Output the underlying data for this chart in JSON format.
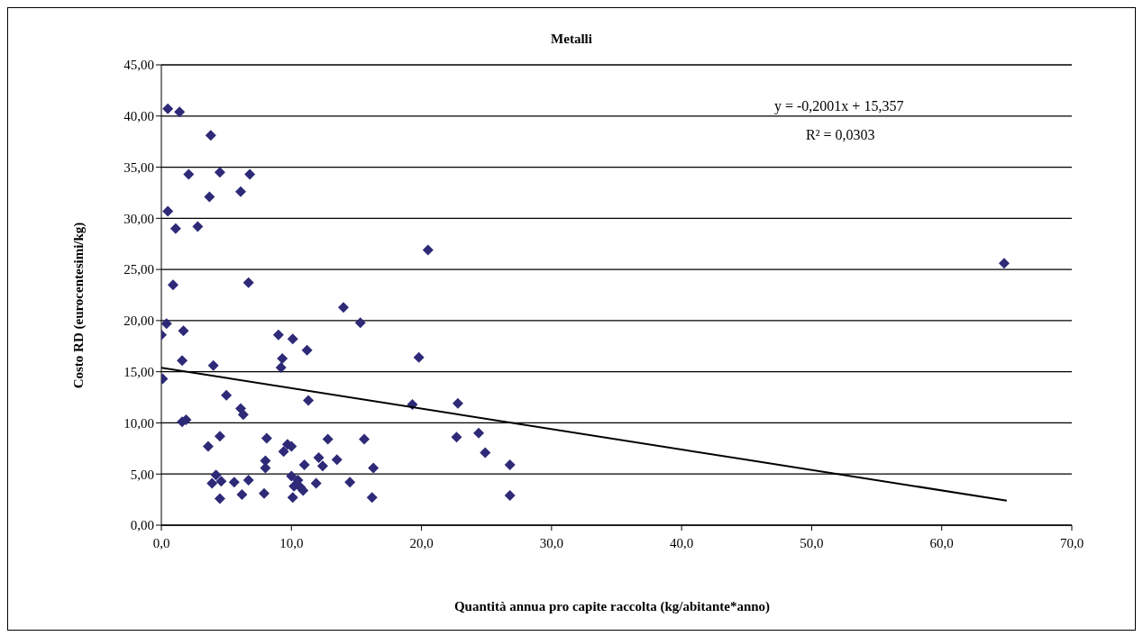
{
  "chart_data": {
    "type": "scatter",
    "title": "Metalli",
    "xlabel": "Quantità annua pro capite raccolta (kg/abitante*anno)",
    "ylabel": "Costo RD (eurocentesimi/kg)",
    "annotations": [
      "y = -0,2001x + 15,357",
      "R² = 0,0303"
    ],
    "xlim": [
      0,
      70
    ],
    "xticks": [
      {
        "value": 0,
        "label": "0,0"
      },
      {
        "value": 10,
        "label": "10,0"
      },
      {
        "value": 20,
        "label": "20,0"
      },
      {
        "value": 30,
        "label": "30,0"
      },
      {
        "value": 40,
        "label": "40,0"
      },
      {
        "value": 50,
        "label": "50,0"
      },
      {
        "value": 60,
        "label": "60,0"
      },
      {
        "value": 70,
        "label": "70,0"
      }
    ],
    "ylim": [
      0,
      45
    ],
    "yticks": [
      {
        "value": 0,
        "label": "0,00"
      },
      {
        "value": 5,
        "label": "5,00"
      },
      {
        "value": 10,
        "label": "10,00"
      },
      {
        "value": 15,
        "label": "15,00"
      },
      {
        "value": 20,
        "label": "20,00"
      },
      {
        "value": 25,
        "label": "25,00"
      },
      {
        "value": 30,
        "label": "30,00"
      },
      {
        "value": 35,
        "label": "35,00"
      },
      {
        "value": 40,
        "label": "40,00"
      },
      {
        "value": 45,
        "label": "45,00"
      }
    ],
    "grid": "y",
    "legend": false,
    "series": [
      {
        "marker": "diamond",
        "color": "#2e2a78",
        "x": [
          0.5,
          1.4,
          3.8,
          2.1,
          4.5,
          6.8,
          6.1,
          3.7,
          0.5,
          1.1,
          2.8,
          20.5,
          0.9,
          6.7,
          64.8,
          14.0,
          0.4,
          15.3,
          1.7,
          0,
          9.0,
          10.1,
          11.2,
          9.3,
          1.6,
          19.8,
          4.0,
          9.2,
          0.1,
          11.3,
          5.0,
          6.1,
          6.3,
          1.6,
          1.9,
          19.3,
          22.8,
          4.5,
          8.1,
          3.6,
          9.7,
          10.0,
          9.4,
          12.8,
          15.6,
          22.7,
          24.4,
          24.9,
          8.0,
          8.0,
          12.1,
          12.4,
          13.5,
          11.0,
          16.3,
          26.8,
          4.2,
          3.9,
          4.6,
          5.6,
          6.7,
          10.0,
          10.5,
          10.2,
          10.7,
          10.9,
          11.9,
          14.5,
          4.5,
          6.2,
          7.9,
          10.1,
          16.2,
          26.8
        ],
        "values": [
          40.7,
          40.4,
          38.1,
          34.3,
          34.5,
          34.3,
          32.6,
          32.1,
          30.7,
          29.0,
          29.2,
          26.9,
          23.5,
          23.7,
          25.6,
          21.3,
          19.7,
          19.8,
          19.0,
          18.6,
          18.6,
          18.2,
          17.1,
          16.3,
          16.1,
          16.4,
          15.6,
          15.4,
          14.3,
          12.2,
          12.7,
          11.4,
          10.8,
          10.1,
          10.3,
          11.8,
          11.9,
          8.7,
          8.5,
          7.7,
          7.9,
          7.7,
          7.2,
          8.4,
          8.4,
          8.6,
          9.0,
          7.1,
          6.3,
          5.6,
          6.6,
          5.8,
          6.4,
          5.9,
          5.6,
          5.9,
          4.9,
          4.1,
          4.3,
          4.2,
          4.4,
          4.8,
          4.4,
          3.8,
          3.7,
          3.4,
          4.1,
          4.2,
          2.6,
          3.0,
          3.1,
          2.7,
          2.7,
          2.9
        ]
      },
      {
        "type": "line",
        "marker": "none",
        "color": "#000000",
        "x": [
          0,
          65
        ],
        "values": [
          15.4,
          2.4
        ]
      }
    ]
  }
}
